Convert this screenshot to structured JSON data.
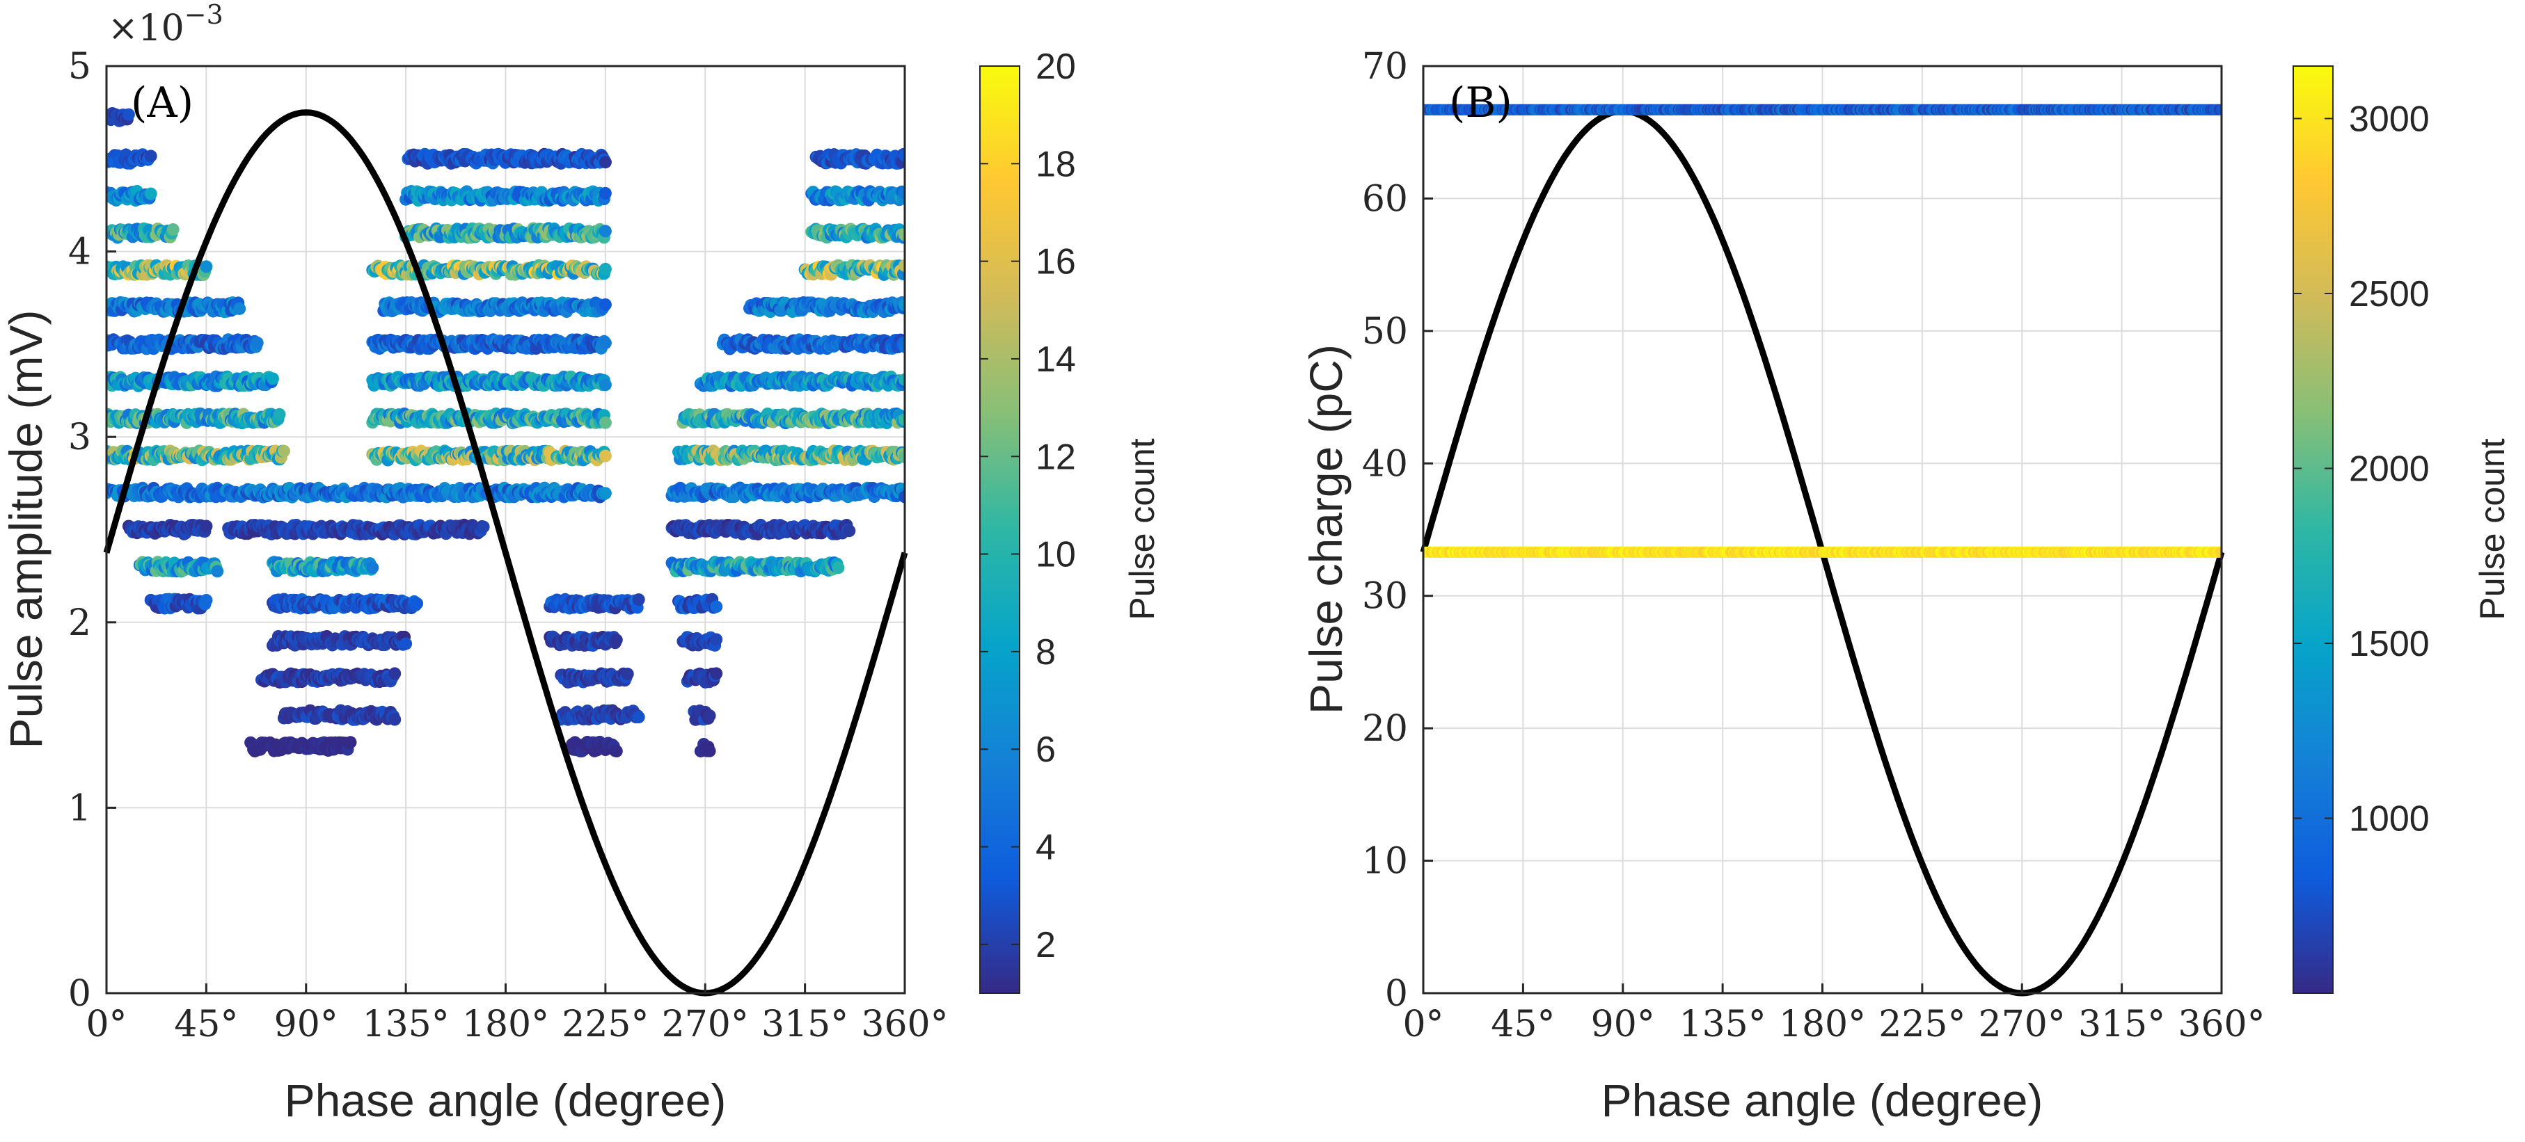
{
  "chart_data": [
    {
      "type": "scatter",
      "panel_label": "(A)",
      "xlabel": "Phase angle (degree)",
      "ylabel": "Pulse amplitude (mV)",
      "xlim": [
        0,
        360
      ],
      "ylim": [
        0,
        5
      ],
      "x_ticks": [
        0,
        45,
        90,
        135,
        180,
        225,
        270,
        315,
        360
      ],
      "x_tick_labels": [
        "0°",
        "45°",
        "90°",
        "135°",
        "180°",
        "225°",
        "270°",
        "315°",
        "360°"
      ],
      "y_ticks": [
        0,
        1,
        2,
        3,
        4,
        5
      ],
      "y_tick_labels": [
        "0",
        "1",
        "2",
        "3",
        "4",
        "5"
      ],
      "y_exponent_label": "×10",
      "y_exponent_power": "−3",
      "grid": true,
      "reference_curve": {
        "name": "phase sine",
        "amplitude": 2.375,
        "offset": 2.375
      },
      "colorbar": {
        "label": "Pulse count",
        "range": [
          1,
          20
        ],
        "ticks": [
          2,
          4,
          6,
          8,
          10,
          12,
          14,
          16,
          18,
          20
        ],
        "tick_labels": [
          "2",
          "4",
          "6",
          "8",
          "10",
          "12",
          "14",
          "16",
          "18",
          "20"
        ]
      },
      "bands": [
        {
          "y": 4.72,
          "x": [
            [
              2,
              10
            ]
          ],
          "count": 2
        },
        {
          "y": 4.5,
          "x": [
            [
              0,
              20
            ],
            [
              136,
              225
            ],
            [
              320,
              360
            ]
          ],
          "count": 3
        },
        {
          "y": 4.3,
          "x": [
            [
              0,
              20
            ],
            [
              135,
              225
            ],
            [
              318,
              360
            ]
          ],
          "count": 6
        },
        {
          "y": 4.1,
          "x": [
            [
              0,
              30
            ],
            [
              135,
              225
            ],
            [
              318,
              360
            ]
          ],
          "count": 9
        },
        {
          "y": 3.9,
          "x": [
            [
              0,
              45
            ],
            [
              120,
              225
            ],
            [
              315,
              360
            ]
          ],
          "count": 12
        },
        {
          "y": 3.7,
          "x": [
            [
              0,
              60
            ],
            [
              125,
              225
            ],
            [
              290,
              360
            ]
          ],
          "count": 5
        },
        {
          "y": 3.5,
          "x": [
            [
              0,
              68
            ],
            [
              120,
              225
            ],
            [
              278,
              360
            ]
          ],
          "count": 4
        },
        {
          "y": 3.3,
          "x": [
            [
              0,
              75
            ],
            [
              120,
              225
            ],
            [
              268,
              360
            ]
          ],
          "count": 7
        },
        {
          "y": 3.1,
          "x": [
            [
              0,
              78
            ],
            [
              120,
              225
            ],
            [
              260,
              360
            ]
          ],
          "count": 9
        },
        {
          "y": 2.9,
          "x": [
            [
              0,
              80
            ],
            [
              120,
              225
            ],
            [
              258,
              360
            ]
          ],
          "count": 11
        },
        {
          "y": 2.7,
          "x": [
            [
              0,
              225
            ],
            [
              255,
              360
            ]
          ],
          "count": 5
        },
        {
          "y": 2.5,
          "x": [
            [
              10,
              45
            ],
            [
              55,
              170
            ],
            [
              255,
              335
            ]
          ],
          "count": 2
        },
        {
          "y": 2.3,
          "x": [
            [
              15,
              50
            ],
            [
              75,
              120
            ],
            [
              255,
              330
            ]
          ],
          "count": 8
        },
        {
          "y": 2.1,
          "x": [
            [
              20,
              45
            ],
            [
              75,
              140
            ],
            [
              200,
              240
            ],
            [
              258,
              275
            ]
          ],
          "count": 3
        },
        {
          "y": 1.9,
          "x": [
            [
              75,
              135
            ],
            [
              200,
              230
            ],
            [
              260,
              275
            ]
          ],
          "count": 2
        },
        {
          "y": 1.7,
          "x": [
            [
              70,
              130
            ],
            [
              205,
              235
            ],
            [
              262,
              275
            ]
          ],
          "count": 2
        },
        {
          "y": 1.5,
          "x": [
            [
              80,
              130
            ],
            [
              205,
              240
            ],
            [
              265,
              272
            ]
          ],
          "count": 2
        },
        {
          "y": 1.33,
          "x": [
            [
              65,
              110
            ],
            [
              210,
              230
            ],
            [
              268,
              272
            ]
          ],
          "count": 1
        }
      ]
    },
    {
      "type": "scatter",
      "panel_label": "(B)",
      "xlabel": "Phase angle (degree)",
      "ylabel": "Pulse charge (pC)",
      "xlim": [
        0,
        360
      ],
      "ylim": [
        0,
        70
      ],
      "x_ticks": [
        0,
        45,
        90,
        135,
        180,
        225,
        270,
        315,
        360
      ],
      "x_tick_labels": [
        "0°",
        "45°",
        "90°",
        "135°",
        "180°",
        "225°",
        "270°",
        "315°",
        "360°"
      ],
      "y_ticks": [
        0,
        10,
        20,
        30,
        40,
        50,
        60,
        70
      ],
      "y_tick_labels": [
        "0",
        "10",
        "20",
        "30",
        "40",
        "50",
        "60",
        "70"
      ],
      "grid": true,
      "reference_curve": {
        "name": "phase sine",
        "amplitude": 33.3,
        "offset": 33.3
      },
      "colorbar": {
        "label": "Pulse count",
        "range": [
          500,
          3150
        ],
        "ticks": [
          1000,
          1500,
          2000,
          2500,
          3000
        ],
        "tick_labels": [
          "1000",
          "1500",
          "2000",
          "2500",
          "3000"
        ]
      },
      "bands": [
        {
          "y": 66.7,
          "x": [
            [
              0,
              360
            ]
          ],
          "count_range": [
            600,
            1100
          ]
        },
        {
          "y": 33.3,
          "x": [
            [
              0,
              360
            ]
          ],
          "count_range": [
            2850,
            3150
          ]
        }
      ]
    }
  ]
}
